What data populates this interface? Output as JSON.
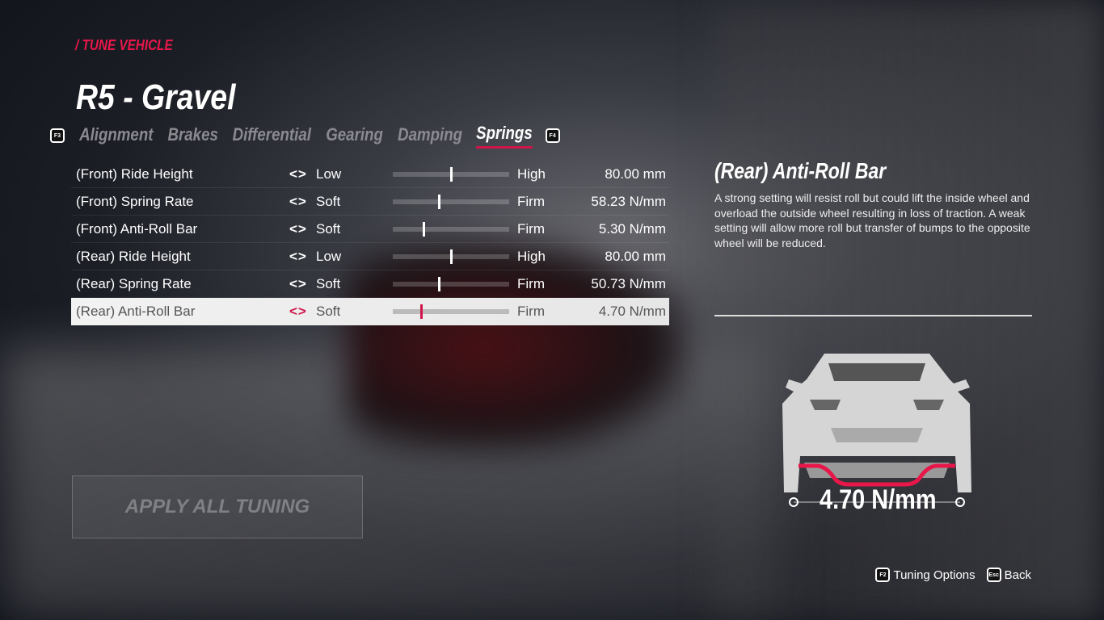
{
  "breadcrumb": "/ TUNE VEHICLE",
  "title": "R5 - Gravel",
  "tabs": {
    "prev_key": "F3",
    "next_key": "F4",
    "items": [
      "Alignment",
      "Brakes",
      "Differential",
      "Gearing",
      "Damping",
      "Springs"
    ],
    "active": "Springs"
  },
  "settings": [
    {
      "label": "(Front) Ride Height",
      "low": "Low",
      "high": "High",
      "value": "80.00 mm",
      "level": 0.5
    },
    {
      "label": "(Front) Spring Rate",
      "low": "Soft",
      "high": "Firm",
      "value": "58.23 N/mm",
      "level": 0.4
    },
    {
      "label": "(Front) Anti-Roll Bar",
      "low": "Soft",
      "high": "Firm",
      "value": "5.30 N/mm",
      "level": 0.26
    },
    {
      "label": "(Rear) Ride Height",
      "low": "Low",
      "high": "High",
      "value": "80.00 mm",
      "level": 0.5
    },
    {
      "label": "(Rear) Spring Rate",
      "low": "Soft",
      "high": "Firm",
      "value": "50.73 N/mm",
      "level": 0.4
    },
    {
      "label": "(Rear) Anti-Roll Bar",
      "low": "Soft",
      "high": "Firm",
      "value": "4.70 N/mm",
      "level": 0.24,
      "selected": true
    }
  ],
  "arrows": "<>",
  "apply_label": "APPLY ALL TUNING",
  "detail": {
    "title": "(Rear) Anti-Roll Bar",
    "description": "A strong setting will resist roll but could lift the inside wheel and overload the outside wheel resulting in loss of traction. A weak setting will allow more roll but transfer of bumps to the opposite wheel will be reduced.",
    "value": "4.70 N/mm"
  },
  "footer": {
    "options_key": "F2",
    "options_label": "Tuning Options",
    "back_key": "Esc",
    "back_label": "Back"
  },
  "colors": {
    "accent": "#e8174a"
  }
}
